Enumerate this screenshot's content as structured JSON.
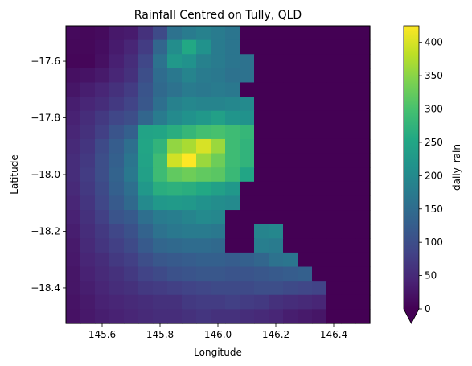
{
  "chart_data": {
    "type": "heatmap",
    "title": "Rainfall Centred on Tully, QLD",
    "xlabel": "Longitude",
    "ylabel": "Latitude",
    "colorbar_label": "daily_rain",
    "colormap": "viridis",
    "xlim": [
      145.475,
      146.525
    ],
    "ylim": [
      -18.525,
      -17.475
    ],
    "cell_size_deg": 0.05,
    "x_ticks": [
      145.6,
      145.8,
      146.0,
      146.2,
      146.4
    ],
    "x_tick_labels": [
      "145.6",
      "145.8",
      "146.0",
      "146.2",
      "146.4"
    ],
    "y_ticks": [
      -17.6,
      -17.8,
      -18.0,
      -18.2,
      -18.4
    ],
    "y_tick_labels": [
      "−17.6",
      "−17.8",
      "−18.0",
      "−18.2",
      "−18.4"
    ],
    "color_range": [
      0,
      425
    ],
    "colorbar_ticks": [
      0,
      50,
      100,
      150,
      200,
      250,
      300,
      350,
      400
    ],
    "colorbar_tick_labels": [
      "0",
      "50",
      "100",
      "150",
      "200",
      "250",
      "300",
      "350",
      "400"
    ],
    "colorbar_extend": "min",
    "x_centers": [
      145.5,
      145.55,
      145.6,
      145.65,
      145.7,
      145.75,
      145.8,
      145.85,
      145.9,
      145.95,
      146.0,
      146.05,
      146.1,
      146.15,
      146.2,
      146.25,
      146.3,
      146.35,
      146.4,
      146.45,
      146.5
    ],
    "y_centers": [
      -17.5,
      -17.55,
      -17.6,
      -17.65,
      -17.7,
      -17.75,
      -17.8,
      -17.85,
      -17.9,
      -17.95,
      -18.0,
      -18.05,
      -18.1,
      -18.15,
      -18.2,
      -18.25,
      -18.3,
      -18.35,
      -18.4,
      -18.45,
      -18.5
    ],
    "values": [
      [
        10,
        8,
        12,
        28,
        32,
        60,
        95,
        160,
        175,
        185,
        175,
        165,
        0,
        0,
        0,
        0,
        0,
        0,
        0,
        0,
        0
      ],
      [
        8,
        8,
        15,
        32,
        45,
        75,
        140,
        205,
        255,
        215,
        175,
        165,
        0,
        0,
        0,
        0,
        0,
        0,
        0,
        0,
        0
      ],
      [
        6,
        6,
        18,
        38,
        55,
        90,
        160,
        225,
        215,
        185,
        175,
        165,
        160,
        0,
        0,
        0,
        0,
        0,
        0,
        0,
        0
      ],
      [
        18,
        22,
        30,
        45,
        60,
        100,
        150,
        170,
        190,
        175,
        170,
        160,
        160,
        0,
        0,
        0,
        0,
        0,
        0,
        0,
        0
      ],
      [
        25,
        35,
        45,
        60,
        75,
        110,
        145,
        160,
        175,
        170,
        175,
        170,
        0,
        0,
        0,
        0,
        0,
        0,
        0,
        0,
        0
      ],
      [
        35,
        45,
        55,
        70,
        85,
        115,
        155,
        185,
        195,
        190,
        190,
        195,
        200,
        0,
        0,
        0,
        0,
        0,
        0,
        0,
        0
      ],
      [
        40,
        55,
        70,
        90,
        100,
        140,
        175,
        200,
        215,
        225,
        240,
        220,
        215,
        0,
        0,
        0,
        0,
        0,
        0,
        0,
        0
      ],
      [
        45,
        60,
        80,
        110,
        130,
        245,
        250,
        265,
        280,
        295,
        300,
        290,
        280,
        0,
        0,
        0,
        0,
        0,
        0,
        0,
        0
      ],
      [
        50,
        65,
        95,
        125,
        155,
        250,
        275,
        355,
        370,
        400,
        360,
        290,
        275,
        0,
        0,
        0,
        0,
        0,
        0,
        0,
        0
      ],
      [
        55,
        70,
        100,
        130,
        165,
        245,
        290,
        395,
        425,
        360,
        330,
        290,
        275,
        0,
        0,
        0,
        0,
        0,
        0,
        0,
        0
      ],
      [
        55,
        75,
        100,
        135,
        170,
        240,
        290,
        320,
        330,
        320,
        315,
        285,
        250,
        0,
        0,
        0,
        0,
        0,
        0,
        0,
        0
      ],
      [
        50,
        70,
        95,
        130,
        155,
        225,
        265,
        270,
        265,
        255,
        240,
        225,
        0,
        0,
        0,
        0,
        0,
        0,
        0,
        0,
        0
      ],
      [
        45,
        65,
        90,
        120,
        145,
        200,
        225,
        230,
        225,
        215,
        205,
        200,
        0,
        0,
        0,
        0,
        0,
        0,
        0,
        0,
        0
      ],
      [
        40,
        60,
        80,
        110,
        120,
        155,
        175,
        180,
        190,
        200,
        195,
        0,
        0,
        0,
        0,
        0,
        0,
        0,
        0,
        0,
        0
      ],
      [
        35,
        55,
        70,
        90,
        105,
        135,
        160,
        170,
        175,
        175,
        170,
        0,
        0,
        190,
        195,
        0,
        0,
        0,
        0,
        0,
        0
      ],
      [
        30,
        50,
        65,
        80,
        95,
        120,
        140,
        145,
        150,
        150,
        145,
        0,
        0,
        180,
        175,
        0,
        0,
        0,
        0,
        0,
        0
      ],
      [
        28,
        45,
        55,
        70,
        80,
        100,
        115,
        120,
        125,
        130,
        130,
        125,
        130,
        140,
        160,
        165,
        0,
        0,
        0,
        0,
        0
      ],
      [
        25,
        40,
        50,
        60,
        70,
        85,
        95,
        105,
        110,
        115,
        115,
        110,
        110,
        115,
        120,
        125,
        130,
        0,
        0,
        0,
        0
      ],
      [
        25,
        35,
        45,
        55,
        60,
        70,
        75,
        80,
        85,
        90,
        95,
        95,
        95,
        100,
        100,
        95,
        90,
        85,
        0,
        0,
        0
      ],
      [
        22,
        30,
        40,
        45,
        50,
        55,
        60,
        60,
        70,
        75,
        75,
        80,
        75,
        70,
        60,
        55,
        50,
        45,
        0,
        0,
        0
      ],
      [
        20,
        28,
        35,
        40,
        45,
        50,
        55,
        55,
        60,
        65,
        60,
        60,
        55,
        50,
        45,
        35,
        30,
        25,
        0,
        0,
        0
      ]
    ]
  }
}
